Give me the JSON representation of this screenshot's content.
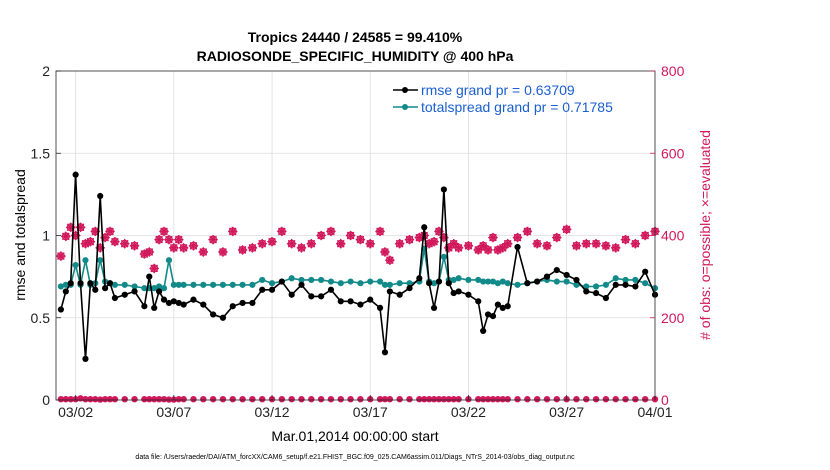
{
  "chart_data": {
    "type": "line",
    "title": "Tropics 24440 / 24585 = 99.410%",
    "subtitle": "RADIOSONDE_SPECIFIC_HUMIDITY @ 400 hPa",
    "xlabel": "Mar.01,2014 00:00:00 start",
    "ylabel": "rmse and totalspread",
    "ylabel_right": "# of obs: o=possible; ×=evaluated",
    "footer": "data file: /Users/raeder/DAI/ATM_forcXX/CAM6_setup/f.e21.FHIST_BGC.f09_025.CAM6assim.011/Diags_NTrS_2014-03/obs_diag_output.nc",
    "xlim": [
      0.5,
      31
    ],
    "ylim": [
      0,
      2
    ],
    "ylim_right": [
      0,
      800
    ],
    "x_ticks": [
      1.5,
      6.5,
      11.5,
      16.5,
      21.5,
      26.5,
      31.5
    ],
    "x_tick_labels": [
      "03/02",
      "03/07",
      "03/12",
      "03/17",
      "03/22",
      "03/27",
      "04/01"
    ],
    "y_ticks": [
      "0",
      "0.5",
      "1",
      "1.5",
      "2"
    ],
    "y_ticks_right": [
      "0",
      "200",
      "400",
      "600",
      "800"
    ],
    "colors": {
      "rmse": "#000000",
      "spread": "#128a8a",
      "obs": "#d1185a",
      "legend_text": "#1a5fd0"
    },
    "legend": {
      "position": "top-right",
      "entries": [
        "rmse grand pr = 0.63709",
        "totalspread grand pr = 0.71785"
      ]
    },
    "x": [
      0.75,
      1,
      1.25,
      1.5,
      1.75,
      2,
      2.25,
      2.5,
      2.75,
      3,
      3.25,
      3.5,
      4,
      4.5,
      5,
      5.25,
      5.5,
      5.75,
      6,
      6.25,
      6.5,
      6.75,
      7,
      7.5,
      8,
      8.5,
      9,
      9.5,
      10,
      10.5,
      11,
      11.5,
      12,
      12.5,
      13,
      13.5,
      14,
      14.5,
      15,
      15.5,
      16,
      16.5,
      17,
      17.25,
      17.5,
      18,
      18.5,
      19,
      19.25,
      19.5,
      19.75,
      20,
      20.25,
      20.5,
      20.75,
      21,
      21.5,
      22,
      22.25,
      22.5,
      22.75,
      23,
      23.25,
      23.5,
      24,
      24.5,
      25,
      25.5,
      26,
      26.5,
      27,
      27.5,
      28,
      28.5,
      29,
      29.5,
      30,
      30.5,
      31
    ],
    "series": [
      {
        "name": "rmse",
        "values": [
          0.55,
          0.66,
          0.71,
          1.37,
          0.71,
          0.25,
          0.71,
          0.67,
          1.24,
          0.68,
          0.71,
          0.62,
          0.64,
          0.66,
          0.57,
          0.75,
          0.56,
          0.66,
          0.61,
          0.59,
          0.6,
          0.59,
          0.58,
          0.61,
          0.58,
          0.52,
          0.5,
          0.57,
          0.59,
          0.59,
          0.67,
          0.67,
          0.72,
          0.64,
          0.7,
          0.63,
          0.63,
          0.67,
          0.6,
          0.6,
          0.58,
          0.61,
          0.56,
          0.29,
          0.66,
          0.64,
          0.68,
          0.74,
          1.05,
          0.71,
          0.56,
          0.72,
          1.28,
          0.71,
          0.65,
          0.66,
          0.64,
          0.6,
          0.42,
          0.52,
          0.51,
          0.58,
          0.56,
          0.57,
          0.93,
          0.71,
          0.72,
          0.75,
          0.79,
          0.76,
          0.73,
          0.66,
          0.65,
          0.62,
          0.7,
          0.7,
          0.69,
          0.78,
          0.64
        ]
      },
      {
        "name": "totalspread",
        "values": [
          0.69,
          0.7,
          0.7,
          0.82,
          0.7,
          0.85,
          0.7,
          0.71,
          0.85,
          0.72,
          0.71,
          0.7,
          0.7,
          0.69,
          0.68,
          0.68,
          0.68,
          0.69,
          0.68,
          0.85,
          0.7,
          0.7,
          0.7,
          0.7,
          0.7,
          0.7,
          0.7,
          0.7,
          0.7,
          0.7,
          0.73,
          0.71,
          0.72,
          0.74,
          0.73,
          0.73,
          0.73,
          0.72,
          0.71,
          0.72,
          0.71,
          0.72,
          0.72,
          0.7,
          0.7,
          0.71,
          0.71,
          0.72,
          0.92,
          0.72,
          0.71,
          0.72,
          0.87,
          0.73,
          0.73,
          0.74,
          0.73,
          0.73,
          0.72,
          0.72,
          0.72,
          0.71,
          0.72,
          0.71,
          0.7,
          0.71,
          0.72,
          0.73,
          0.72,
          0.72,
          0.7,
          0.69,
          0.69,
          0.7,
          0.74,
          0.73,
          0.73,
          0.71,
          0.68
        ]
      },
      {
        "name": "obs_evaluated",
        "axis": "right",
        "values": [
          350,
          398,
          420,
          400,
          420,
          380,
          385,
          410,
          370,
          395,
          410,
          385,
          380,
          375,
          355,
          360,
          320,
          390,
          410,
          390,
          370,
          390,
          370,
          375,
          360,
          390,
          360,
          410,
          365,
          370,
          380,
          385,
          410,
          380,
          370,
          380,
          400,
          410,
          380,
          400,
          390,
          380,
          410,
          360,
          340,
          380,
          390,
          395,
          400,
          380,
          385,
          410,
          395,
          370,
          380,
          370,
          375,
          365,
          375,
          365,
          395,
          365,
          370,
          380,
          395,
          410,
          380,
          375,
          395,
          415,
          375,
          380,
          380,
          375,
          370,
          390,
          380,
          400,
          410
        ]
      },
      {
        "name": "obs_possible",
        "axis": "right",
        "values": [
          350,
          398,
          420,
          400,
          420,
          380,
          385,
          410,
          370,
          395,
          410,
          385,
          380,
          375,
          355,
          360,
          320,
          390,
          410,
          390,
          370,
          390,
          370,
          375,
          360,
          390,
          360,
          410,
          365,
          370,
          380,
          385,
          410,
          380,
          370,
          380,
          400,
          410,
          380,
          400,
          390,
          380,
          410,
          360,
          340,
          380,
          390,
          395,
          400,
          380,
          385,
          410,
          395,
          370,
          380,
          370,
          375,
          365,
          375,
          365,
          395,
          365,
          370,
          380,
          395,
          410,
          380,
          375,
          395,
          415,
          375,
          380,
          380,
          375,
          370,
          390,
          380,
          400,
          410
        ]
      },
      {
        "name": "obs_rejected",
        "axis": "right",
        "values": [
          2,
          2,
          2,
          2,
          4,
          2,
          2,
          2,
          1,
          2,
          2,
          2,
          2,
          2,
          2,
          2,
          2,
          2,
          2,
          1,
          1,
          2,
          2,
          2,
          2,
          2,
          2,
          2,
          2,
          2,
          2,
          2,
          2,
          2,
          2,
          2,
          2,
          2,
          2,
          2,
          2,
          2,
          2,
          2,
          2,
          2,
          2,
          2,
          2,
          2,
          2,
          2,
          2,
          2,
          2,
          2,
          2,
          2,
          2,
          2,
          2,
          2,
          2,
          2,
          2,
          2,
          2,
          2,
          2,
          2,
          2,
          2,
          2,
          2,
          2,
          2,
          2,
          2,
          2
        ]
      }
    ]
  }
}
